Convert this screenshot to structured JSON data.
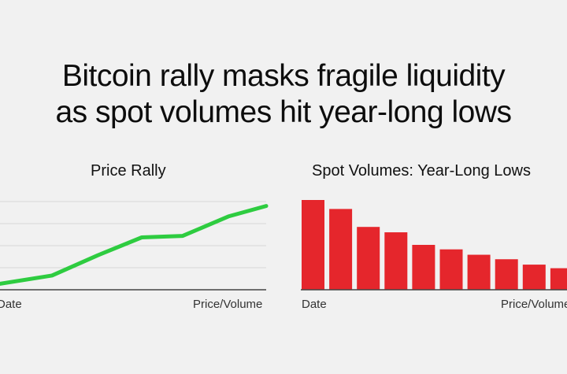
{
  "headline": {
    "line1": "Bitcoin rally masks fragile liquidity",
    "line2": "as spot volumes hit year-long lows"
  },
  "colors": {
    "line": "#2ecc40",
    "bars": "#e5262c",
    "axis": "#444444",
    "grid": "#d6d6d6"
  },
  "chart_data": [
    {
      "type": "line",
      "title": "Price Rally",
      "xlabel": "Date",
      "ylabel": "Price/Volume",
      "grid": true,
      "series": [
        {
          "values": [
            8,
            19,
            46,
            70,
            72,
            98,
            112
          ]
        }
      ],
      "ylim": [
        0,
        120
      ]
    },
    {
      "type": "bar",
      "title": "Spot Volumes: Year-Long Lows",
      "xlabel": "Date",
      "ylabel": "Price/Volume",
      "grid": false,
      "series": [
        {
          "values": [
            100,
            90,
            70,
            64,
            50,
            45,
            39,
            34,
            28,
            24
          ]
        }
      ],
      "ylim": [
        0,
        100
      ]
    }
  ]
}
